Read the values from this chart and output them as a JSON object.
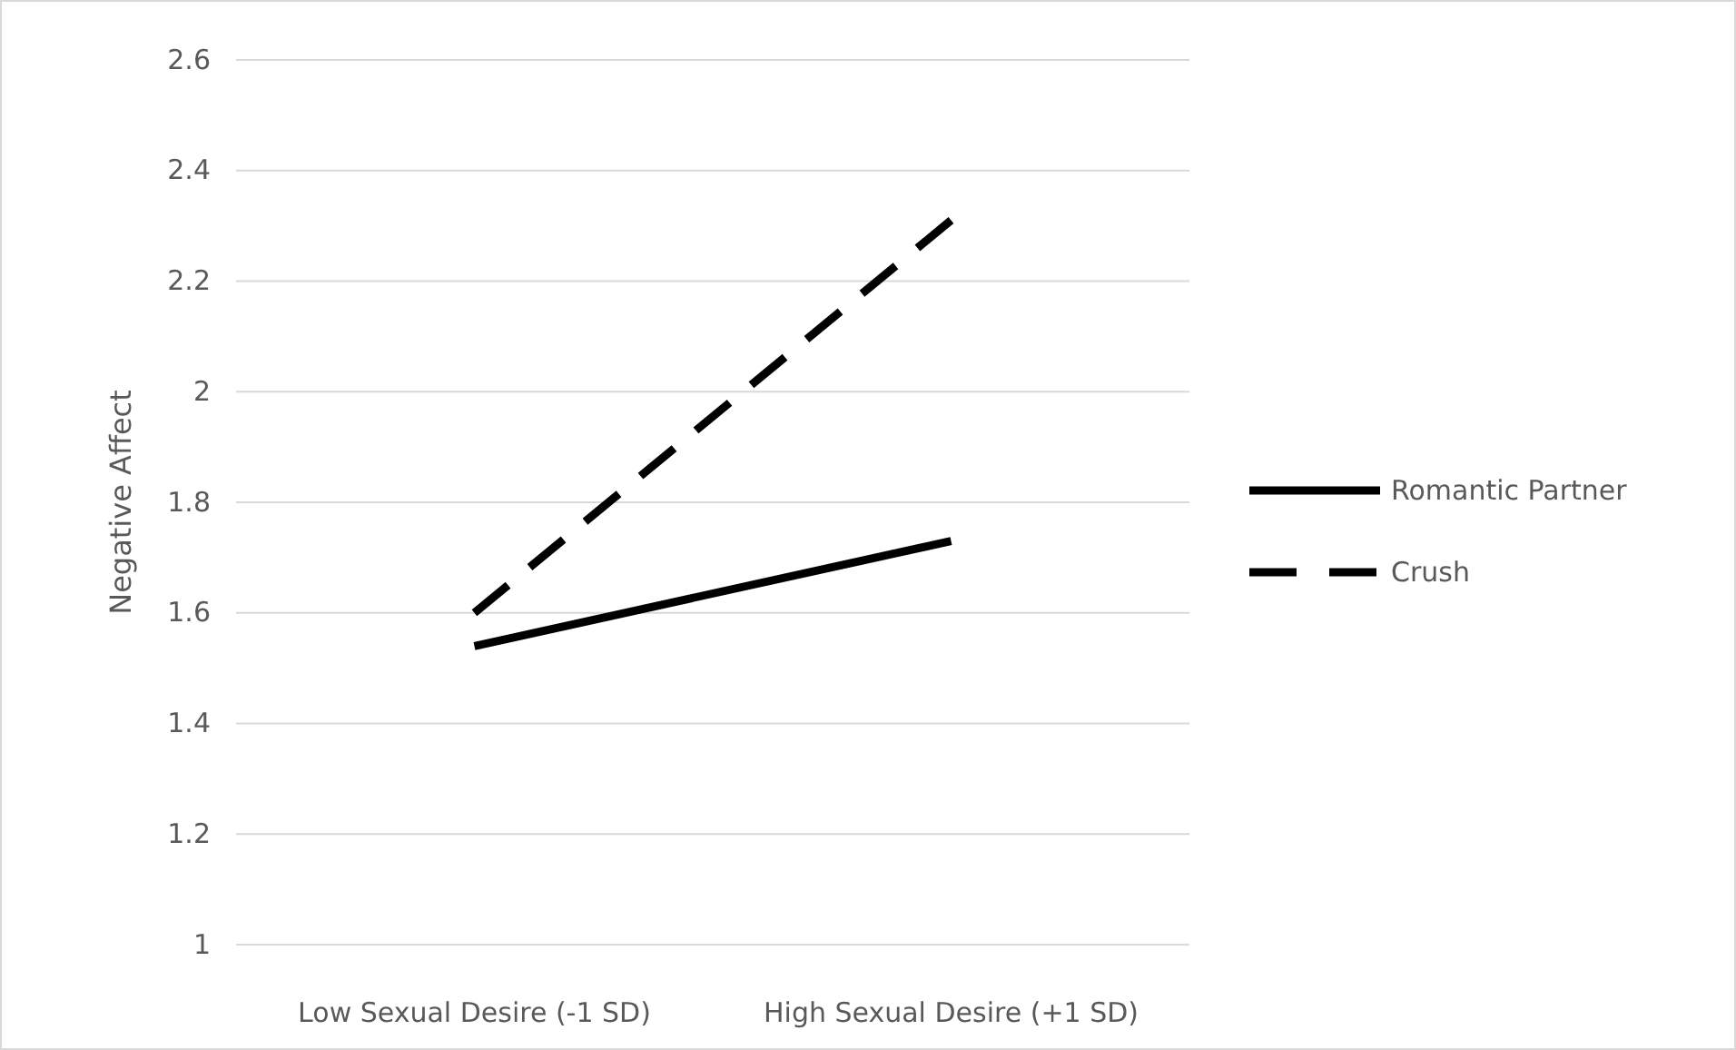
{
  "chart_data": {
    "type": "line",
    "ylabel": "Negative Affect",
    "categories": [
      "Low Sexual Desire (-1 SD)",
      "High Sexual Desire (+1 SD)"
    ],
    "series": [
      {
        "name": "Romantic Partner",
        "color": "#000000",
        "values": [
          1.54,
          1.73
        ],
        "line_style": "solid"
      },
      {
        "name": "Crush",
        "color": "#000000",
        "values": [
          1.6,
          2.31
        ],
        "line_style": "dashed"
      }
    ],
    "ylim": [
      1,
      2.6
    ],
    "yticks": [
      1,
      1.2,
      1.4,
      1.6,
      1.8,
      2,
      2.2,
      2.4,
      2.6
    ],
    "grid": "y",
    "legend": "right",
    "marker": "none"
  }
}
